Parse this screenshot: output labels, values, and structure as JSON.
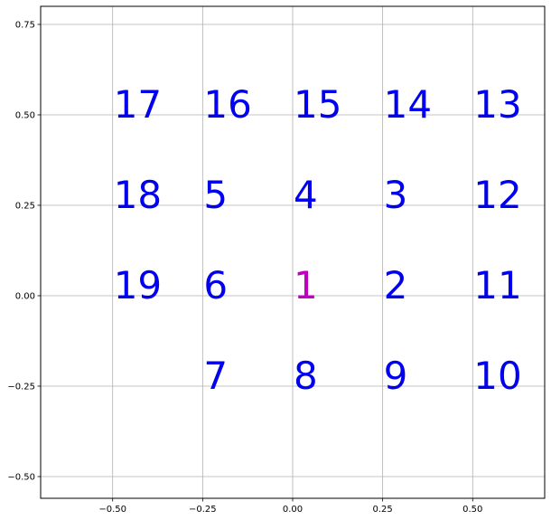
{
  "chart_data": {
    "type": "scatter",
    "title": "",
    "xlabel": "",
    "ylabel": "",
    "xlim": [
      -0.7,
      0.7
    ],
    "ylim": [
      -0.56,
      0.8
    ],
    "grid": true,
    "x_ticks": [
      {
        "value": -0.5,
        "label": "−0.50"
      },
      {
        "value": -0.25,
        "label": "−0.25"
      },
      {
        "value": 0.0,
        "label": "0.00"
      },
      {
        "value": 0.25,
        "label": "0.25"
      },
      {
        "value": 0.5,
        "label": "0.50"
      }
    ],
    "y_ticks": [
      {
        "value": -0.5,
        "label": "−0.50"
      },
      {
        "value": -0.25,
        "label": "−0.25"
      },
      {
        "value": 0.0,
        "label": "0.00"
      },
      {
        "value": 0.25,
        "label": "0.25"
      },
      {
        "value": 0.5,
        "label": "0.50"
      },
      {
        "value": 0.75,
        "label": "0.75"
      }
    ],
    "points": [
      {
        "label": "1",
        "x": 0.0,
        "y": 0.0,
        "color": "#bf00bf"
      },
      {
        "label": "2",
        "x": 0.25,
        "y": 0.0,
        "color": "#0000ee"
      },
      {
        "label": "3",
        "x": 0.25,
        "y": 0.25,
        "color": "#0000ee"
      },
      {
        "label": "4",
        "x": 0.0,
        "y": 0.25,
        "color": "#0000ee"
      },
      {
        "label": "5",
        "x": -0.25,
        "y": 0.25,
        "color": "#0000ee"
      },
      {
        "label": "6",
        "x": -0.25,
        "y": 0.0,
        "color": "#0000ee"
      },
      {
        "label": "7",
        "x": -0.25,
        "y": -0.25,
        "color": "#0000ee"
      },
      {
        "label": "8",
        "x": 0.0,
        "y": -0.25,
        "color": "#0000ee"
      },
      {
        "label": "9",
        "x": 0.25,
        "y": -0.25,
        "color": "#0000ee"
      },
      {
        "label": "10",
        "x": 0.5,
        "y": -0.25,
        "color": "#0000ee"
      },
      {
        "label": "11",
        "x": 0.5,
        "y": 0.0,
        "color": "#0000ee"
      },
      {
        "label": "12",
        "x": 0.5,
        "y": 0.25,
        "color": "#0000ee"
      },
      {
        "label": "13",
        "x": 0.5,
        "y": 0.5,
        "color": "#0000ee"
      },
      {
        "label": "14",
        "x": 0.25,
        "y": 0.5,
        "color": "#0000ee"
      },
      {
        "label": "15",
        "x": 0.0,
        "y": 0.5,
        "color": "#0000ee"
      },
      {
        "label": "16",
        "x": -0.25,
        "y": 0.5,
        "color": "#0000ee"
      },
      {
        "label": "17",
        "x": -0.5,
        "y": 0.5,
        "color": "#0000ee"
      },
      {
        "label": "18",
        "x": -0.5,
        "y": 0.25,
        "color": "#0000ee"
      },
      {
        "label": "19",
        "x": -0.5,
        "y": 0.0,
        "color": "#0000ee"
      }
    ],
    "colors": {
      "grid": "#b0b0b0",
      "axis": "#000000"
    }
  }
}
